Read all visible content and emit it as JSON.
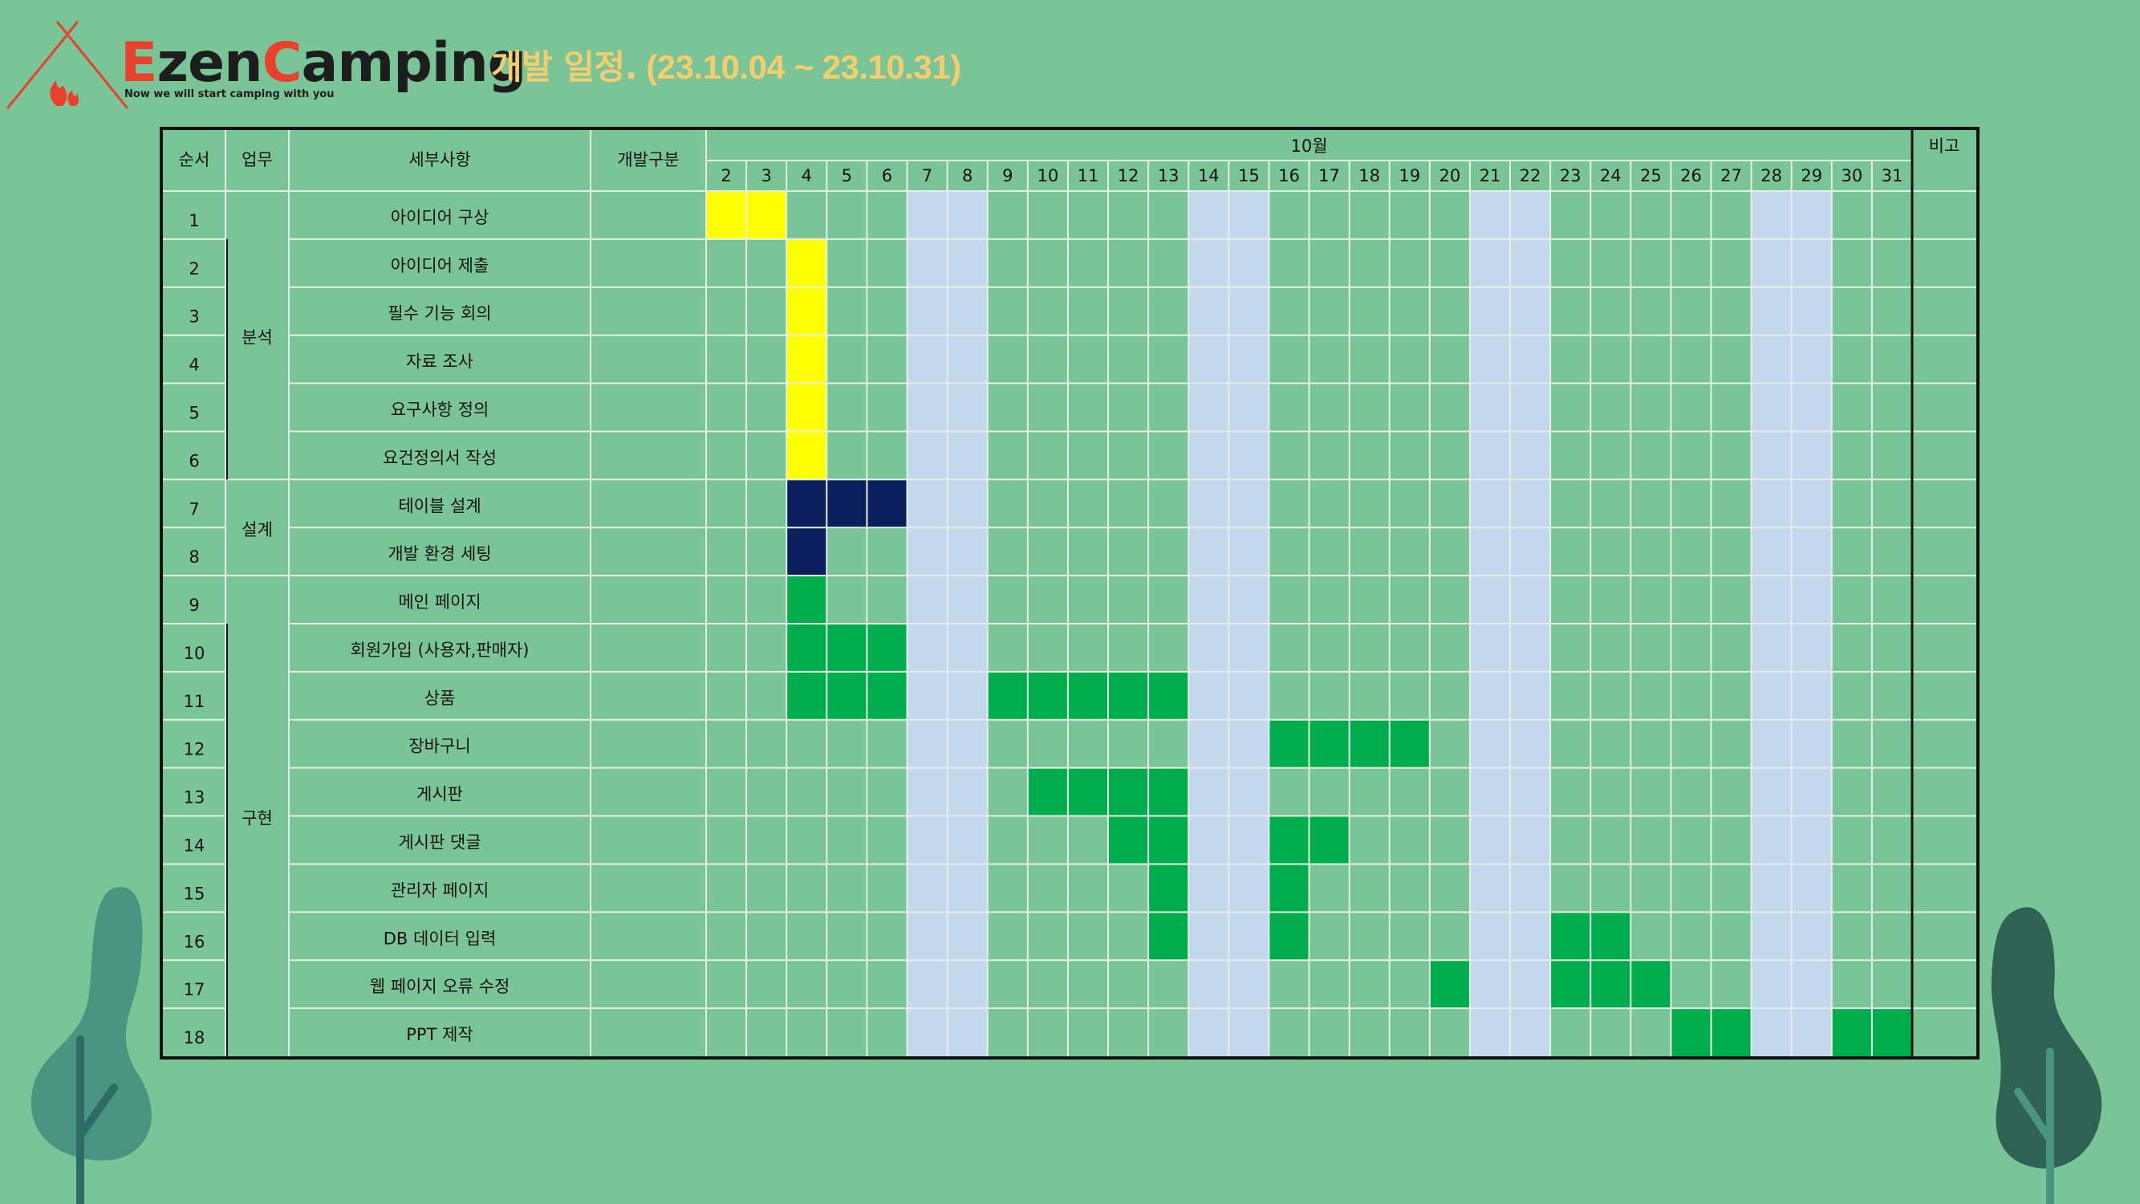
{
  "header": {
    "brand_parts": [
      "E",
      "zen",
      "C",
      "amping"
    ],
    "tagline": "Now we will start camping with you",
    "title_kr": "개발 일정.",
    "title_dates": " (23.10.04 ~ 23.10.31)"
  },
  "table": {
    "headers": {
      "order": "순서",
      "work": "업무",
      "detail": "세부사항",
      "category": "개발구분",
      "month": "10월",
      "notes": "비고"
    },
    "days": [
      2,
      3,
      4,
      5,
      6,
      7,
      8,
      9,
      10,
      11,
      12,
      13,
      14,
      15,
      16,
      17,
      18,
      19,
      20,
      21,
      22,
      23,
      24,
      25,
      26,
      27,
      28,
      29,
      30,
      31
    ],
    "weekend_days": [
      7,
      8,
      14,
      15,
      21,
      22,
      28,
      29
    ],
    "groups": [
      {
        "label": "분석",
        "first_row": 1,
        "last_row": 6
      },
      {
        "label": "설계",
        "first_row": 7,
        "last_row": 8
      },
      {
        "label": "구현",
        "first_row": 9,
        "last_row": 18
      }
    ],
    "rows": [
      {
        "no": "1",
        "task": "아이디어 구상",
        "yellow": [
          2,
          3
        ],
        "navy": [],
        "green": []
      },
      {
        "no": "2",
        "task": "아이디어 제출",
        "yellow": [
          4
        ],
        "navy": [],
        "green": []
      },
      {
        "no": "3",
        "task": "필수 기능 회의",
        "yellow": [
          4
        ],
        "navy": [],
        "green": []
      },
      {
        "no": "4",
        "task": "자료 조사",
        "yellow": [
          4
        ],
        "navy": [],
        "green": []
      },
      {
        "no": "5",
        "task": "요구사항 정의",
        "yellow": [
          4
        ],
        "navy": [],
        "green": []
      },
      {
        "no": "6",
        "task": "요건정의서 작성",
        "yellow": [
          4
        ],
        "navy": [],
        "green": []
      },
      {
        "no": "7",
        "task": "테이블 설계",
        "yellow": [],
        "navy": [
          4,
          5,
          6
        ],
        "green": []
      },
      {
        "no": "8",
        "task": "개발 환경 세팅",
        "yellow": [],
        "navy": [
          4
        ],
        "green": []
      },
      {
        "no": "9",
        "task": "메인 페이지",
        "yellow": [],
        "navy": [],
        "green": [
          4
        ]
      },
      {
        "no": "10",
        "task": "회원가입 (사용자,판매자)",
        "yellow": [],
        "navy": [],
        "green": [
          4,
          5,
          6
        ]
      },
      {
        "no": "11",
        "task": "상품",
        "yellow": [],
        "navy": [],
        "green": [
          4,
          5,
          6,
          9,
          10,
          11,
          12,
          13
        ]
      },
      {
        "no": "12",
        "task": "장바구니",
        "yellow": [],
        "navy": [],
        "green": [
          16,
          17,
          18,
          19
        ]
      },
      {
        "no": "13",
        "task": "게시판",
        "yellow": [],
        "navy": [],
        "green": [
          10,
          11,
          12,
          13
        ]
      },
      {
        "no": "14",
        "task": "게시판 댓글",
        "yellow": [],
        "navy": [],
        "green": [
          12,
          13,
          16,
          17
        ]
      },
      {
        "no": "15",
        "task": "관리자 페이지",
        "yellow": [],
        "navy": [],
        "green": [
          13,
          16
        ]
      },
      {
        "no": "16",
        "task": "DB 데이터 입력",
        "yellow": [],
        "navy": [],
        "green": [
          13,
          16,
          23,
          24
        ]
      },
      {
        "no": "17",
        "task": "웹 페이지 오류 수정",
        "yellow": [],
        "navy": [],
        "green": [
          20,
          23,
          24,
          25
        ]
      },
      {
        "no": "18",
        "task": "PPT 제작",
        "yellow": [],
        "navy": [],
        "green": [
          26,
          27,
          30,
          31
        ]
      }
    ]
  },
  "colors": {
    "background": "#79c597",
    "weekend": "#c3d8ec",
    "yellow": "#ffff00",
    "navy": "#0b1f5c",
    "green": "#00ad4d",
    "gridline": "#e6efe6",
    "title": "#f6cd6e",
    "brand_accent": "#e8412c"
  }
}
